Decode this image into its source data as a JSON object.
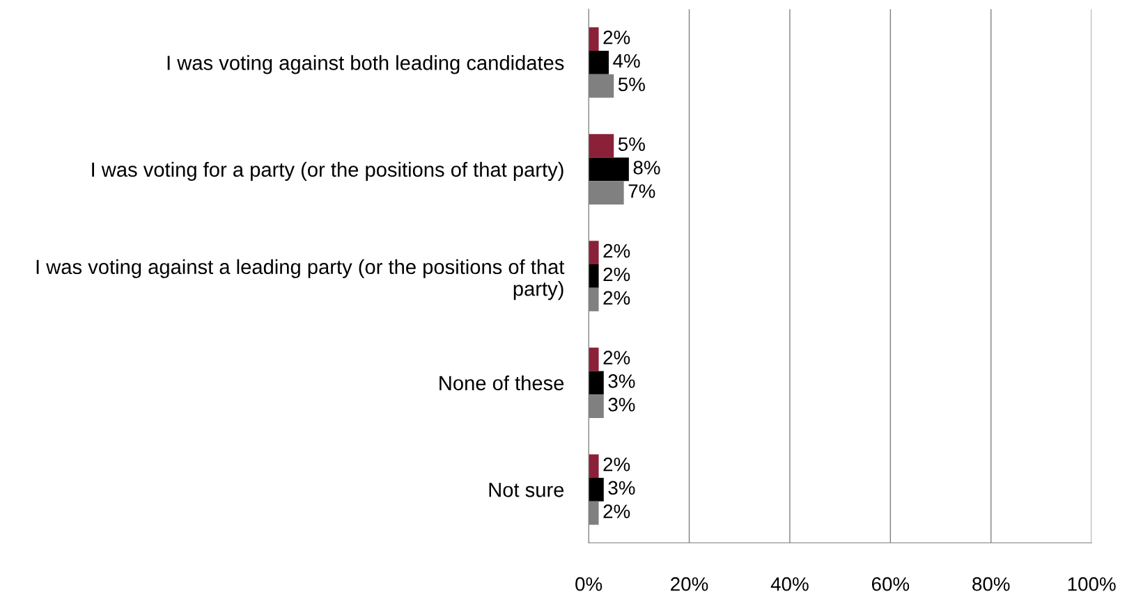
{
  "chart_data": {
    "type": "bar",
    "orientation": "horizontal",
    "categories": [
      "I was voting against both leading candidates",
      "I was voting for a party (or the positions of that party)",
      "I was voting against a leading party (or the positions of that party)",
      "None of these",
      "Not sure"
    ],
    "series": [
      {
        "color": "#8b2139",
        "values": [
          2,
          5,
          2,
          2,
          2
        ],
        "value_labels": [
          "2%",
          "5%",
          "2%",
          "2%",
          "2%"
        ]
      },
      {
        "color": "#000000",
        "values": [
          4,
          8,
          2,
          3,
          3
        ],
        "value_labels": [
          "4%",
          "8%",
          "2%",
          "3%",
          "3%"
        ]
      },
      {
        "color": "#808080",
        "values": [
          5,
          7,
          2,
          3,
          2
        ],
        "value_labels": [
          "5%",
          "7%",
          "2%",
          "3%",
          "2%"
        ]
      }
    ],
    "xlim": [
      0,
      100
    ],
    "xticks": [
      {
        "value": 0,
        "label": "0%"
      },
      {
        "value": 20,
        "label": "20%"
      },
      {
        "value": 40,
        "label": "40%"
      },
      {
        "value": 60,
        "label": "60%"
      },
      {
        "value": 80,
        "label": "80%"
      },
      {
        "value": 100,
        "label": "100%"
      }
    ],
    "grid": "x",
    "legend": false
  }
}
